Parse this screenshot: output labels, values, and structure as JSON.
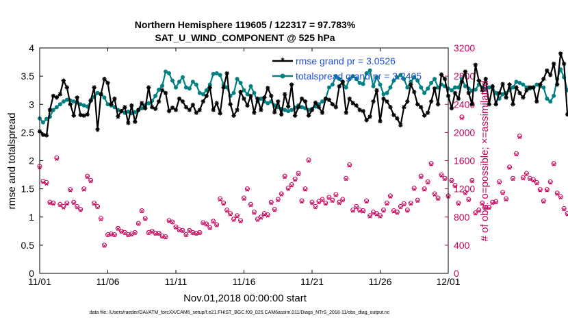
{
  "chart_data": {
    "type": "line",
    "title_line1": "Northern Hemisphere 119605 / 122317 = 97.783%",
    "title_line2": "SAT_U_WIND_COMPONENT @ 525 hPa",
    "xlabel": "Nov.01,2018 00:00:00 start",
    "ylabel_left": "rmse and totalspread",
    "ylabel_right": "# of obs: o=possible; ×=assimilated",
    "footer": "data file: /Users/raeder/DAI/ATM_forcXX/CAM6_setup/f.e21.FHIST_BGC.f09_025.CAM6assim.011/Diags_NTrS_2018-11/obs_diag_output.nc",
    "x_ticks": [
      "11/01",
      "11/06",
      "11/11",
      "11/16",
      "11/21",
      "11/26",
      "12/01"
    ],
    "x_tick_days": [
      0,
      5,
      10,
      15,
      20,
      25,
      30
    ],
    "xlim": [
      0,
      30
    ],
    "ylim_left": [
      0,
      4
    ],
    "y_ticks_left": [
      "0",
      "0.5",
      "1",
      "1.5",
      "2",
      "2.5",
      "3",
      "3.5",
      "4"
    ],
    "ylim_right": [
      0,
      3200
    ],
    "y_ticks_right": [
      "0",
      "400",
      "800",
      "1200",
      "1600",
      "2000",
      "2400",
      "2800",
      "3200"
    ],
    "legend_position": "top-right",
    "colors": {
      "rmse": "#000000",
      "spread": "#008080",
      "obs": "#c8005a",
      "legend_text": "#1f4fd0"
    },
    "series": [
      {
        "name": "rmse grand pr = 3.0526",
        "axis": "left",
        "x_start_day": 0.0,
        "x_step_days": 0.25,
        "values": [
          2.52,
          2.46,
          2.45,
          2.9,
          3.15,
          3.12,
          3.18,
          3.42,
          3.3,
          3.0,
          2.8,
          3.12,
          2.81,
          2.8,
          2.82,
          3.07,
          3.3,
          2.55,
          3.18,
          3.45,
          3.38,
          3.0,
          3.1,
          2.78,
          2.88,
          2.95,
          2.67,
          2.98,
          2.69,
          2.9,
          3.02,
          2.93,
          3.3,
          2.95,
          2.92,
          3.05,
          3.25,
          3.2,
          2.88,
          2.94,
          2.9,
          3.1,
          3.05,
          2.95,
          2.9,
          2.99,
          2.85,
          2.9,
          3.05,
          3.15,
          3.3,
          2.9,
          3.02,
          2.84,
          3.3,
          3.55,
          3.0,
          2.8,
          2.9,
          3.22,
          3.1,
          2.98,
          3.15,
          2.85,
          3.1,
          2.9,
          3.12,
          3.29,
          3.15,
          2.86,
          3.05,
          2.82,
          3.18,
          2.96,
          3.35,
          2.8,
          2.95,
          3.1,
          3.05,
          2.8,
          2.9,
          3.03,
          2.95,
          2.85,
          3.1,
          3.08,
          3.0,
          2.95,
          3.32,
          3.4,
          2.85,
          3.1,
          3.02,
          2.98,
          2.9,
          2.88,
          2.72,
          2.78,
          3.05,
          3.25,
          2.7,
          3.1,
          3.05,
          2.95,
          2.81,
          2.75,
          2.63,
          2.95,
          3.05,
          3.35,
          3.22,
          3.0,
          2.95,
          2.8,
          2.85,
          3.05,
          3.28,
          3.0,
          3.53,
          3.45,
          3.15,
          2.93,
          3.2,
          3.1,
          3.4,
          3.58,
          3.2,
          3.0,
          3.7,
          3.42,
          3.25,
          3.45,
          3.0,
          3.32,
          3.0,
          3.2,
          3.36,
          3.12,
          3.35,
          3.0,
          3.3,
          3.2,
          3.12,
          3.25,
          3.3,
          3.3,
          3.05,
          3.35,
          3.45,
          3.6,
          3.52,
          3.72,
          3.35,
          3.9,
          3.72,
          2.82,
          2.8,
          2.4,
          2.78,
          2.45,
          2.8
        ],
        "marker": "asterisk"
      },
      {
        "name": "totalspread grand pr = 3.2405",
        "axis": "left",
        "x_start_day": 0.0,
        "x_step_days": 0.25,
        "values": [
          2.75,
          2.68,
          2.74,
          2.78,
          2.9,
          2.95,
          3.0,
          3.05,
          3.08,
          3.07,
          3.05,
          3.03,
          3.0,
          2.98,
          2.96,
          3.06,
          3.13,
          3.2,
          3.18,
          3.12,
          3.0,
          2.98,
          2.95,
          2.9,
          2.88,
          2.85,
          2.87,
          2.84,
          2.86,
          2.9,
          2.93,
          2.98,
          3.02,
          3.06,
          3.15,
          3.26,
          3.33,
          3.58,
          3.55,
          3.42,
          3.3,
          3.4,
          3.48,
          3.3,
          3.28,
          3.4,
          3.35,
          3.2,
          3.18,
          3.25,
          3.35,
          3.54,
          3.55,
          3.52,
          3.35,
          3.3,
          3.15,
          3.2,
          3.45,
          3.38,
          3.25,
          3.18,
          3.32,
          3.2,
          3.05,
          3.1,
          3.05,
          3.02,
          3.05,
          2.98,
          2.95,
          2.92,
          2.9,
          2.88,
          2.9,
          2.94,
          2.98,
          2.95,
          2.93,
          2.9,
          2.92,
          2.96,
          3.0,
          3.05,
          3.1,
          3.3,
          3.35,
          3.5,
          3.45,
          3.38,
          3.3,
          3.45,
          3.5,
          3.45,
          3.38,
          3.36,
          3.55,
          3.6,
          3.32,
          3.48,
          3.35,
          3.18,
          3.2,
          3.3,
          3.42,
          3.48,
          3.52,
          3.45,
          3.3,
          3.4,
          3.48,
          3.42,
          3.3,
          3.2,
          3.28,
          3.38,
          3.45,
          3.3,
          3.35,
          3.32,
          3.28,
          3.25,
          3.3,
          3.3,
          3.45,
          3.32,
          3.28,
          3.24,
          3.26,
          3.35,
          3.3,
          3.28,
          3.3,
          3.3,
          3.2,
          3.1,
          3.18,
          3.2,
          3.25,
          3.3,
          3.4,
          3.38,
          3.35,
          3.3,
          3.28,
          3.3,
          3.35,
          3.32,
          3.3,
          3.1,
          3.05,
          3.15,
          3.45,
          3.62,
          3.48,
          3.25,
          3.18,
          3.05,
          3.0,
          2.98,
          2.95
        ],
        "marker": "circle"
      },
      {
        "name": "obs possible",
        "axis": "right",
        "x_start_day": 0.0,
        "x_step_days": 0.25,
        "values": [
          1520,
          1310,
          1290,
          1010,
          1000,
          1640,
          980,
          950,
          1000,
          1190,
          1010,
          950,
          910,
          1200,
          1380,
          1320,
          1000,
          950,
          780,
          400,
          550,
          560,
          550,
          640,
          600,
          580,
          550,
          560,
          580,
          710,
          890,
          780,
          580,
          600,
          570,
          570,
          530,
          520,
          750,
          730,
          660,
          620,
          610,
          550,
          610,
          580,
          570,
          580,
          720,
          700,
          650,
          740,
          690,
          1060,
          1000,
          900,
          850,
          770,
          820,
          750,
          1070,
          1200,
          980,
          870,
          770,
          800,
          850,
          830,
          1010,
          910,
          1050,
          1130,
          1380,
          1210,
          1260,
          1340,
          1420,
          1030,
          1200,
          1610,
          1010,
          950,
          1020,
          1050,
          1000,
          1080,
          1040,
          1120,
          1010,
          1050,
          1350,
          1540,
          900,
          950,
          900,
          890,
          1030,
          820,
          870,
          850,
          820,
          900,
          1000,
          1100,
          890,
          870,
          950,
          990,
          900,
          1000,
          1210,
          1040,
          1380,
          1200,
          1300,
          1560,
          1130,
          1070,
          1400,
          1350,
          1100,
          1320,
          1250,
          1000,
          2220,
          1150,
          1050,
          1320,
          860,
          900,
          1000,
          940,
          940,
          1010,
          1020,
          1300,
          1150,
          1060,
          1510,
          1350,
          1700,
          1950,
          1360,
          1420,
          1350,
          1330,
          1290,
          1190,
          1030,
          1190,
          1300,
          1560,
          1140,
          1090,
          920,
          850,
          1060,
          780,
          850,
          1130,
          850,
          780,
          1080,
          1540,
          1260,
          1220,
          1210,
          1270,
          1020,
          950,
          1330,
          0
        ]
      },
      {
        "name": "obs assimilated",
        "axis": "right",
        "x_start_day": 0.0,
        "x_step_days": 0.25,
        "values": [
          1500,
          1290,
          1270,
          995,
          985,
          1620,
          965,
          930,
          985,
          1175,
          995,
          935,
          895,
          1185,
          1365,
          1305,
          985,
          935,
          765,
          390,
          540,
          550,
          540,
          630,
          590,
          570,
          540,
          550,
          570,
          700,
          880,
          770,
          570,
          590,
          560,
          560,
          520,
          510,
          740,
          720,
          650,
          610,
          600,
          540,
          600,
          570,
          560,
          570,
          710,
          690,
          640,
          730,
          680,
          1045,
          985,
          885,
          835,
          755,
          805,
          735,
          1055,
          1185,
          965,
          855,
          755,
          785,
          835,
          815,
          995,
          895,
          1035,
          1115,
          1365,
          1195,
          1245,
          1325,
          1405,
          1015,
          1185,
          1595,
          995,
          935,
          1005,
          1035,
          985,
          1065,
          1025,
          1105,
          995,
          1035,
          1335,
          1525,
          885,
          935,
          885,
          875,
          1015,
          805,
          855,
          835,
          805,
          885,
          985,
          1085,
          875,
          855,
          935,
          975,
          885,
          985,
          1195,
          1025,
          1365,
          1185,
          1285,
          1545,
          1115,
          1055,
          1385,
          1335,
          1085,
          1305,
          1235,
          985,
          2200,
          1135,
          1035,
          1305,
          845,
          885,
          985,
          925,
          925,
          995,
          1005,
          1285,
          1135,
          1045,
          1495,
          1335,
          1685,
          1930,
          1345,
          1405,
          1335,
          1315,
          1275,
          1175,
          1015,
          1175,
          1285,
          1545,
          1125,
          1075,
          905,
          835,
          1045,
          765,
          835,
          1115,
          835,
          765,
          1065,
          1525,
          1245,
          1205,
          1195,
          1255,
          1005,
          935,
          1315,
          0
        ]
      }
    ]
  }
}
